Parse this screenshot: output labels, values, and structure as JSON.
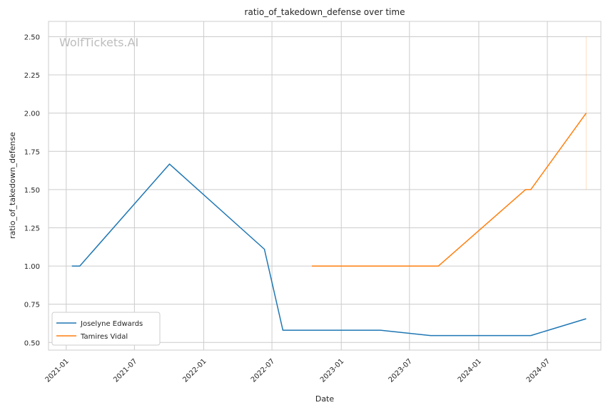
{
  "chart_data": {
    "type": "line",
    "title": "ratio_of_takedown_defense over time",
    "xlabel": "Date",
    "ylabel": "ratio_of_takedown_defense",
    "watermark": "WolfTickets.AI",
    "x_ticks": [
      "2021-01",
      "2021-07",
      "2022-01",
      "2022-07",
      "2023-01",
      "2023-07",
      "2024-01",
      "2024-07"
    ],
    "y_ticks": [
      "0.50",
      "0.75",
      "1.00",
      "1.25",
      "1.50",
      "1.75",
      "2.00",
      "2.25",
      "2.50"
    ],
    "ylim": [
      0.45,
      2.6
    ],
    "xlim": [
      "2020-11-15",
      "2024-11-20"
    ],
    "grid": true,
    "legend_position": "lower-left",
    "series": [
      {
        "name": "Joselyne Edwards",
        "color": "#1f77b4",
        "points": [
          {
            "x": "2021-01-16",
            "y": 1.0
          },
          {
            "x": "2021-02-06",
            "y": 1.0
          },
          {
            "x": "2021-10-02",
            "y": 1.667
          },
          {
            "x": "2022-06-11",
            "y": 1.11
          },
          {
            "x": "2022-07-30",
            "y": 0.58
          },
          {
            "x": "2023-04-15",
            "y": 0.58
          },
          {
            "x": "2023-08-26",
            "y": 0.545
          },
          {
            "x": "2024-05-18",
            "y": 0.545
          },
          {
            "x": "2024-10-12",
            "y": 0.655
          }
        ]
      },
      {
        "name": "Tamires Vidal",
        "color": "#ff7f0e",
        "points": [
          {
            "x": "2022-10-15",
            "y": 1.0
          },
          {
            "x": "2023-09-16",
            "y": 1.0
          },
          {
            "x": "2024-05-04",
            "y": 1.5
          },
          {
            "x": "2024-05-18",
            "y": 1.5
          },
          {
            "x": "2024-10-12",
            "y": 2.0
          }
        ],
        "error_band": {
          "x": "2024-10-12",
          "low": 1.5,
          "high": 2.5
        }
      }
    ]
  }
}
